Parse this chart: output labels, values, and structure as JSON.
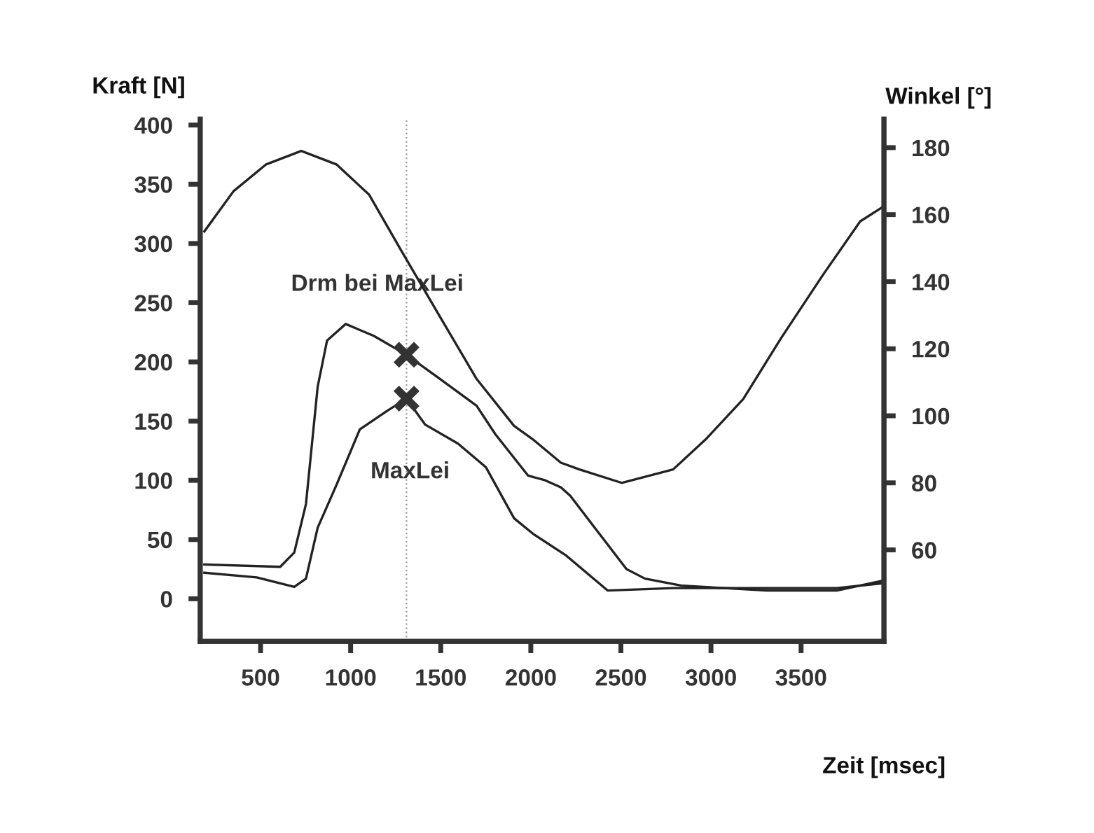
{
  "chart_data": {
    "type": "line",
    "xlabel": "Zeit [msec]",
    "ylabel": "Kraft [N]",
    "y2label": "Winkel [°]",
    "xlim": [
      165,
      3960
    ],
    "xticks": [
      500,
      1000,
      1500,
      2000,
      2500,
      3000,
      3500
    ],
    "ylim": [
      -36,
      405
    ],
    "yticks": [
      0,
      50,
      100,
      150,
      200,
      250,
      300,
      350,
      400
    ],
    "y2lim": [
      32.7,
      188.5
    ],
    "y2ticks": [
      60,
      80,
      100,
      120,
      140,
      160,
      180
    ],
    "grid": false,
    "legend": false,
    "series": [
      {
        "axis": "y2",
        "color": "#222222",
        "x": [
          188,
          350,
          531,
          726,
          921,
          1102,
          1284,
          1491,
          1699,
          1907,
          2011,
          2167,
          2270,
          2504,
          2790,
          2971,
          3179,
          3387,
          3621,
          3828,
          3945
        ],
        "values": [
          155,
          167,
          175,
          179,
          175,
          166,
          149,
          130,
          111,
          97,
          93,
          86,
          84,
          80,
          84,
          93,
          105,
          123,
          142,
          158,
          162
        ]
      },
      {
        "axis": "y",
        "color": "#222222",
        "x": [
          188,
          609,
          687,
          752,
          817,
          869,
          973,
          1128,
          1310,
          1492,
          1699,
          1803,
          1985,
          2080,
          2167,
          2219,
          2375,
          2531,
          2634,
          2842,
          3309,
          3699,
          3945
        ],
        "values": [
          29,
          27,
          39,
          80,
          179,
          218,
          232,
          222,
          206,
          186,
          163,
          139,
          104,
          100,
          94,
          87,
          56,
          25,
          17,
          11,
          7,
          7,
          15
        ]
      },
      {
        "axis": "y",
        "color": "#222222",
        "x": [
          188,
          479,
          687,
          752,
          817,
          921,
          1051,
          1206,
          1310,
          1414,
          1596,
          1751,
          1907,
          2011,
          2192,
          2426,
          2790,
          3309,
          3699,
          3945
        ],
        "values": [
          22,
          18,
          10,
          17,
          60,
          96,
          143,
          159,
          169,
          147,
          131,
          111,
          68,
          55,
          37,
          7,
          9,
          9,
          9,
          13
        ]
      },
      {
        "type": "scatter",
        "axis": "y",
        "color": "#333333",
        "marker": "cross",
        "x": [
          1310,
          1310
        ],
        "values": [
          206,
          169
        ]
      }
    ],
    "ref_lines": [
      {
        "axis": "x",
        "value": 1310,
        "color": "#999999",
        "line_style": "dotted"
      }
    ],
    "annotations": [
      {
        "text": "Drm bei MaxLei",
        "x": 1310,
        "y": 206
      },
      "MaxLei"
    ]
  }
}
